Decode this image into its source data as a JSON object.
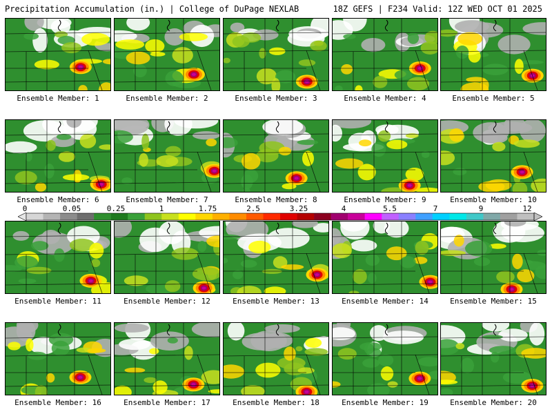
{
  "header": {
    "title_left": "Precipitation Accumulation (in.) | College of DuPage NEXLAB",
    "title_right": "18Z GEFS | F234 Valid: 12Z WED OCT 01 2025"
  },
  "legend": {
    "labels": [
      "0",
      "0.05",
      "0.25",
      "1",
      "1.75",
      "2.5",
      "3.25",
      "4",
      "5.5",
      "7",
      "9",
      "12"
    ],
    "colors": [
      "#d6d6d6",
      "#b4b4b4",
      "#8c8c8c",
      "#6e6e6e",
      "#2f8f2f",
      "#1f7a1f",
      "#3aa13a",
      "#8fc41f",
      "#c8e01f",
      "#ffff00",
      "#ffd700",
      "#ffb000",
      "#ff8c00",
      "#ff5a00",
      "#ff2a00",
      "#e00000",
      "#b40000",
      "#8b0020",
      "#a0006e",
      "#c8009a",
      "#ff00ff",
      "#c060ff",
      "#8a80ff",
      "#40a0ff",
      "#00d0ff",
      "#00e8e8",
      "#40c8c8",
      "#80a8a8",
      "#a0a0a0",
      "#c0c0c0"
    ]
  },
  "members": [
    {
      "label": "Ensemble Member: 1"
    },
    {
      "label": "Ensemble Member: 2"
    },
    {
      "label": "Ensemble Member: 3"
    },
    {
      "label": "Ensemble Member: 4"
    },
    {
      "label": "Ensemble Member: 5"
    },
    {
      "label": "Ensemble Member: 6"
    },
    {
      "label": "Ensemble Member: 7"
    },
    {
      "label": "Ensemble Member: 8"
    },
    {
      "label": "Ensemble Member: 9"
    },
    {
      "label": "Ensemble Member: 10"
    },
    {
      "label": "Ensemble Member: 11"
    },
    {
      "label": "Ensemble Member: 12"
    },
    {
      "label": "Ensemble Member: 13"
    },
    {
      "label": "Ensemble Member: 14"
    },
    {
      "label": "Ensemble Member: 15"
    },
    {
      "label": "Ensemble Member: 16"
    },
    {
      "label": "Ensemble Member: 17"
    },
    {
      "label": "Ensemble Member: 18"
    },
    {
      "label": "Ensemble Member: 19"
    },
    {
      "label": "Ensemble Member: 20"
    }
  ]
}
